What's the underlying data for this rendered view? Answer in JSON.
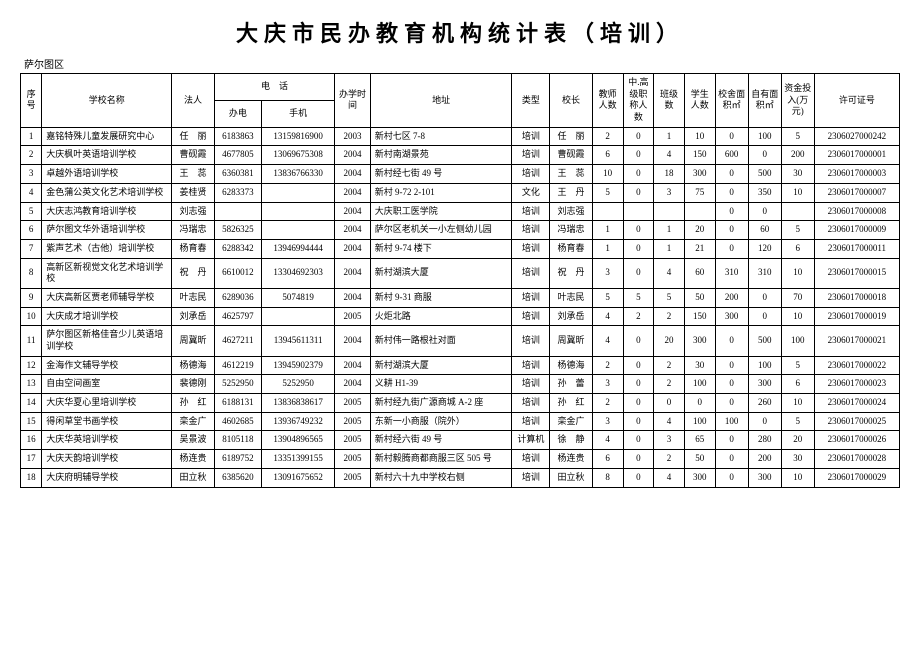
{
  "title": "大庆市民办教育机构统计表（培训）",
  "subtitle": "萨尔图区",
  "headers": {
    "seq": "序号",
    "school": "学校名称",
    "legal": "法人",
    "phone": "电　话",
    "office_phone": "办电",
    "mobile": "手机",
    "start": "办学时间",
    "addr": "地址",
    "type": "类型",
    "principal": "校长",
    "teachers": "教师人数",
    "senior": "中.高级职称人数",
    "classes": "班级数",
    "students": "学生人数",
    "room_area": "校舍面积㎡",
    "own_area": "自有面积㎡",
    "fund": "资金投入(万元)",
    "license": "许可证号"
  },
  "rows": [
    {
      "seq": 1,
      "school": "嘉铭特殊儿童发展研究中心",
      "legal": "任　丽",
      "office": "6183863",
      "mobile": "13159816900",
      "year": "2003",
      "addr": "新村七区 7-8",
      "type": "培训",
      "principal": "任　丽",
      "teachers": 2,
      "senior": 0,
      "classes": 1,
      "students": 10,
      "room": 0,
      "own": 100,
      "fund": 5,
      "license": "2306027000242"
    },
    {
      "seq": 2,
      "school": "大庆枫叶英语培训学校",
      "legal": "曹砚霞",
      "office": "4677805",
      "mobile": "13069675308",
      "year": "2004",
      "addr": "新村南湖景苑",
      "type": "培训",
      "principal": "曹砚霞",
      "teachers": 6,
      "senior": 0,
      "classes": 4,
      "students": 150,
      "room": 600,
      "own": 0,
      "fund": 200,
      "license": "2306017000001"
    },
    {
      "seq": 3,
      "school": "卓越外语培训学校",
      "legal": "王　蕊",
      "office": "6360381",
      "mobile": "13836766330",
      "year": "2004",
      "addr": "新村经七街 49 号",
      "type": "培训",
      "principal": "王　蕊",
      "teachers": 10,
      "senior": 0,
      "classes": 18,
      "students": 300,
      "room": 0,
      "own": 500,
      "fund": 30,
      "license": "2306017000003"
    },
    {
      "seq": 4,
      "school": "金色蒲公英文化艺术培训学校",
      "legal": "姜桂贤",
      "office": "6283373",
      "mobile": "",
      "year": "2004",
      "addr": "新村 9-72 2-101",
      "type": "文化",
      "principal": "王　丹",
      "teachers": 5,
      "senior": 0,
      "classes": 3,
      "students": 75,
      "room": 0,
      "own": 350,
      "fund": 10,
      "license": "2306017000007"
    },
    {
      "seq": 5,
      "school": "大庆志鸿教育培训学校",
      "legal": "刘志强",
      "office": "",
      "mobile": "",
      "year": "2004",
      "addr": "大庆职工医学院",
      "type": "培训",
      "principal": "刘志强",
      "teachers": "",
      "senior": "",
      "classes": "",
      "students": "",
      "room": 0,
      "own": 0,
      "fund": "",
      "license": "2306017000008"
    },
    {
      "seq": 6,
      "school": "萨尔图文华外语培训学校",
      "legal": "冯瑞忠",
      "office": "5826325",
      "mobile": "",
      "year": "2004",
      "addr": "萨尔区老机关一小左侧幼儿园",
      "type": "培训",
      "principal": "冯瑞忠",
      "teachers": 1,
      "senior": 0,
      "classes": 1,
      "students": 20,
      "room": 0,
      "own": 60,
      "fund": 5,
      "license": "2306017000009"
    },
    {
      "seq": 7,
      "school": "紫声艺术（古他）培训学校",
      "legal": "杨育春",
      "office": "6288342",
      "mobile": "13946994444",
      "year": "2004",
      "addr": "新村 9-74 楼下",
      "type": "培训",
      "principal": "杨育春",
      "teachers": 1,
      "senior": 0,
      "classes": 1,
      "students": 21,
      "room": 0,
      "own": 120,
      "fund": 6,
      "license": "2306017000011"
    },
    {
      "seq": 8,
      "school": "高新区新视觉文化艺术培训学校",
      "legal": "祝　丹",
      "office": "6610012",
      "mobile": "13304692303",
      "year": "2004",
      "addr": "新村湖滨大厦",
      "type": "培训",
      "principal": "祝　丹",
      "teachers": 3,
      "senior": 0,
      "classes": 4,
      "students": 60,
      "room": 310,
      "own": 310,
      "fund": 10,
      "license": "2306017000015"
    },
    {
      "seq": 9,
      "school": "大庆高新区贾老师辅导学校",
      "legal": "叶志民",
      "office": "6289036",
      "mobile": "5074819",
      "year": "2004",
      "addr": "新村 9-31 商服",
      "type": "培训",
      "principal": "叶志民",
      "teachers": 5,
      "senior": 5,
      "classes": 5,
      "students": 50,
      "room": 200,
      "own": 0,
      "fund": 70,
      "license": "2306017000018"
    },
    {
      "seq": 10,
      "school": "大庆成才培训学校",
      "legal": "刘承岳",
      "office": "4625797",
      "mobile": "",
      "year": "2005",
      "addr": "火炬北路",
      "type": "培训",
      "principal": "刘承岳",
      "teachers": 4,
      "senior": 2,
      "classes": 2,
      "students": 150,
      "room": 300,
      "own": 0,
      "fund": 10,
      "license": "2306017000019"
    },
    {
      "seq": 11,
      "school": "萨尔图区新格佳音少儿英语培训学校",
      "legal": "周冀昕",
      "office": "4627211",
      "mobile": "13945611311",
      "year": "2004",
      "addr": "新村伟一路根社对面",
      "type": "培训",
      "principal": "周冀昕",
      "teachers": 4,
      "senior": 0,
      "classes": 20,
      "students": 300,
      "room": 0,
      "own": 500,
      "fund": 100,
      "license": "2306017000021"
    },
    {
      "seq": 12,
      "school": "金海作文辅导学校",
      "legal": "杨德海",
      "office": "4612219",
      "mobile": "13945902379",
      "year": "2004",
      "addr": "新村湖滨大厦",
      "type": "培训",
      "principal": "杨德海",
      "teachers": 2,
      "senior": 0,
      "classes": 2,
      "students": 30,
      "room": 0,
      "own": 100,
      "fund": 5,
      "license": "2306017000022"
    },
    {
      "seq": 13,
      "school": "自由空间画室",
      "legal": "裴德刚",
      "office": "5252950",
      "mobile": "5252950",
      "year": "2004",
      "addr": "义耕 H1-39",
      "type": "培训",
      "principal": "孙　蕾",
      "teachers": 3,
      "senior": 0,
      "classes": 2,
      "students": 100,
      "room": 0,
      "own": 300,
      "fund": 6,
      "license": "2306017000023"
    },
    {
      "seq": 14,
      "school": "大庆华夏心里培训学校",
      "legal": "孙　红",
      "office": "6188131",
      "mobile": "13836838617",
      "year": "2005",
      "addr": "新村经九街广源商城 A-2 座",
      "type": "培训",
      "principal": "孙　红",
      "teachers": 2,
      "senior": 0,
      "classes": 0,
      "students": 0,
      "room": 0,
      "own": 260,
      "fund": 10,
      "license": "2306017000024"
    },
    {
      "seq": 15,
      "school": "得闲草堂书画学校",
      "legal": "栾金广",
      "office": "4602685",
      "mobile": "13936749232",
      "year": "2005",
      "addr": "东新一小商服（院外）",
      "type": "培训",
      "principal": "栾金广",
      "teachers": 3,
      "senior": 0,
      "classes": 4,
      "students": 100,
      "room": 100,
      "own": 0,
      "fund": 5,
      "license": "2306017000025"
    },
    {
      "seq": 16,
      "school": "大庆华英培训学校",
      "legal": "吴景波",
      "office": "8105118",
      "mobile": "13904896565",
      "year": "2005",
      "addr": "新村经六街 49 号",
      "type": "计算机",
      "principal": "徐　静",
      "teachers": 4,
      "senior": 0,
      "classes": 3,
      "students": 65,
      "room": 0,
      "own": 280,
      "fund": 20,
      "license": "2306017000026"
    },
    {
      "seq": 17,
      "school": "大庆天韵培训学校",
      "legal": "杨连贵",
      "office": "6189752",
      "mobile": "13351399155",
      "year": "2005",
      "addr": "新村毅腾商都商服三区 505 号",
      "type": "培训",
      "principal": "杨连贵",
      "teachers": 6,
      "senior": 0,
      "classes": 2,
      "students": 50,
      "room": 0,
      "own": 200,
      "fund": 30,
      "license": "2306017000028"
    },
    {
      "seq": 18,
      "school": "大庆府明辅导学校",
      "legal": "田立秋",
      "office": "6385620",
      "mobile": "13091675652",
      "year": "2005",
      "addr": "新村六十九中学校右侧",
      "type": "培训",
      "principal": "田立秋",
      "teachers": 8,
      "senior": 0,
      "classes": 4,
      "students": 300,
      "room": 0,
      "own": 300,
      "fund": 10,
      "license": "2306017000029"
    }
  ]
}
